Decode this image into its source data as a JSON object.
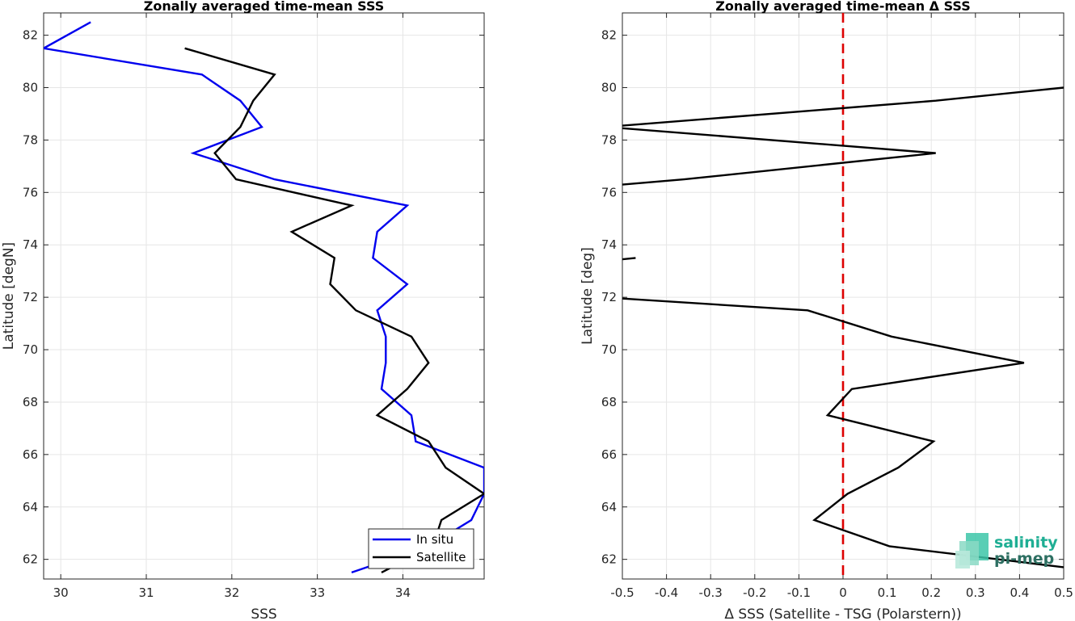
{
  "chart_data": [
    {
      "type": "line",
      "title": "Zonally averaged time-mean SSS",
      "xlabel": "SSS",
      "ylabel": "Latitude [degN]",
      "xlim": [
        29.8,
        34.95
      ],
      "ylim": [
        61.25,
        82.85
      ],
      "xticks": [
        30,
        31,
        32,
        33,
        34
      ],
      "yticks": [
        62,
        64,
        66,
        68,
        70,
        72,
        74,
        76,
        78,
        80,
        82
      ],
      "grid": true,
      "legend_position": "bottom-right",
      "series": [
        {
          "name": "In situ",
          "color": "#0000ee",
          "points": [
            [
              30.35,
              82.5
            ],
            [
              29.8,
              81.5
            ],
            [
              31.65,
              80.5
            ],
            [
              32.1,
              79.5
            ],
            [
              32.35,
              78.5
            ],
            [
              31.55,
              77.5
            ],
            [
              32.5,
              76.5
            ],
            [
              34.05,
              75.5
            ],
            [
              33.7,
              74.5
            ],
            [
              33.65,
              73.5
            ],
            [
              34.05,
              72.5
            ],
            [
              33.7,
              71.5
            ],
            [
              33.8,
              70.5
            ],
            [
              33.8,
              69.5
            ],
            [
              33.75,
              68.5
            ],
            [
              34.1,
              67.5
            ],
            [
              34.15,
              66.5
            ],
            [
              34.95,
              65.5
            ],
            [
              34.95,
              64.5
            ],
            [
              34.8,
              63.5
            ],
            [
              34.3,
              62.5
            ],
            [
              33.4,
              61.5
            ]
          ]
        },
        {
          "name": "Satellite",
          "color": "#000000",
          "points": [
            [
              31.45,
              81.5
            ],
            [
              32.5,
              80.5
            ],
            [
              32.25,
              79.5
            ],
            [
              32.1,
              78.5
            ],
            [
              31.8,
              77.5
            ],
            [
              32.05,
              76.5
            ],
            [
              33.4,
              75.5
            ],
            [
              32.7,
              74.5
            ],
            [
              33.2,
              73.5
            ],
            [
              33.15,
              72.5
            ],
            [
              33.45,
              71.5
            ],
            [
              34.1,
              70.5
            ],
            [
              34.3,
              69.5
            ],
            [
              34.05,
              68.5
            ],
            [
              33.7,
              67.5
            ],
            [
              34.3,
              66.5
            ],
            [
              34.5,
              65.5
            ],
            [
              34.95,
              64.5
            ],
            [
              34.45,
              63.5
            ],
            [
              34.35,
              62.5
            ],
            [
              33.75,
              61.5
            ]
          ]
        }
      ]
    },
    {
      "type": "line",
      "title": "Zonally averaged time-mean Δ SSS",
      "xlabel": "Δ SSS (Satellite - TSG (Polarstern))",
      "ylabel": "Latitude [deg]",
      "xlim": [
        -0.5,
        0.5
      ],
      "ylim": [
        61.25,
        82.85
      ],
      "xticks": [
        -0.5,
        -0.4,
        -0.3,
        -0.2,
        -0.1,
        0,
        0.1,
        0.2,
        0.3,
        0.4,
        0.5
      ],
      "xtick_labels": [
        "-0.5",
        "-0.4",
        "-0.3",
        "-0.2",
        "-0.1",
        "0",
        "0.1",
        "0.2",
        "0.3",
        "0.4",
        "0.5"
      ],
      "yticks": [
        62,
        64,
        66,
        68,
        70,
        72,
        74,
        76,
        78,
        80,
        82
      ],
      "grid": true,
      "reference_line": {
        "x": 0,
        "color": "#dd0000",
        "style": "dashed"
      },
      "series": [
        {
          "color": "#000000",
          "segments": [
            [
              [
                0.5,
                80.0
              ],
              [
                0.21,
                79.5
              ],
              [
                -0.5,
                78.55
              ]
            ],
            [
              [
                -0.5,
                78.45
              ],
              [
                0.21,
                77.5
              ],
              [
                -0.36,
                76.5
              ],
              [
                -0.5,
                76.3
              ]
            ],
            [
              [
                -0.5,
                73.45
              ],
              [
                -0.47,
                73.5
              ]
            ],
            [
              [
                -0.5,
                71.95
              ],
              [
                -0.08,
                71.5
              ],
              [
                0.11,
                70.5
              ],
              [
                0.41,
                69.5
              ],
              [
                0.02,
                68.5
              ],
              [
                -0.035,
                67.5
              ],
              [
                0.205,
                66.5
              ],
              [
                0.125,
                65.5
              ],
              [
                0.01,
                64.5
              ],
              [
                -0.065,
                63.5
              ],
              [
                0.105,
                62.5
              ],
              [
                0.5,
                61.7
              ]
            ]
          ]
        }
      ]
    }
  ],
  "logo": {
    "line1": "salinity",
    "line2": "pi-mep"
  }
}
